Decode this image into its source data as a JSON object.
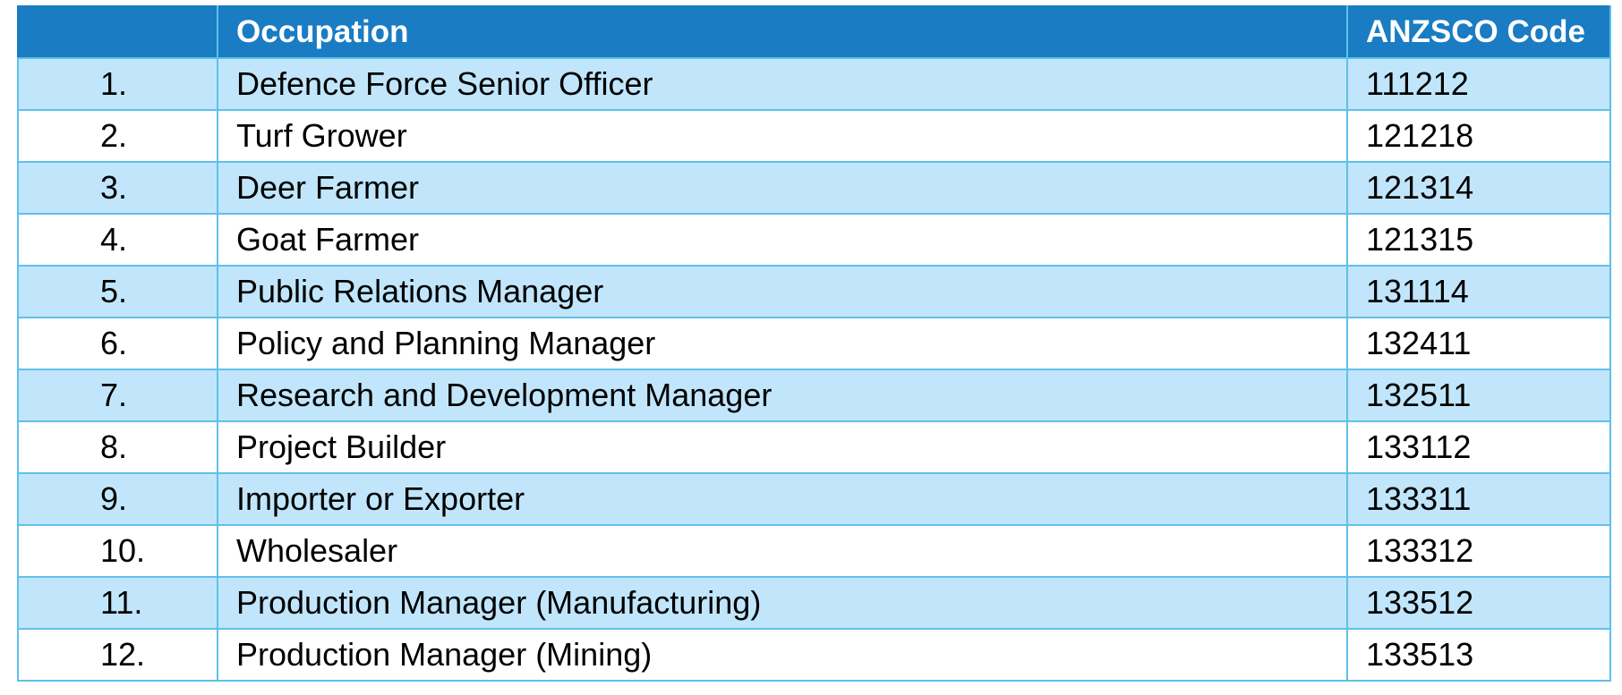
{
  "table": {
    "headers": {
      "number": "",
      "occupation": "Occupation",
      "code": "ANZSCO Code"
    },
    "rows": [
      {
        "number": "1.",
        "occupation": "Defence Force Senior Officer",
        "code": "111212"
      },
      {
        "number": "2.",
        "occupation": "Turf Grower",
        "code": "121218"
      },
      {
        "number": "3.",
        "occupation": "Deer Farmer",
        "code": "121314"
      },
      {
        "number": "4.",
        "occupation": "Goat Farmer",
        "code": "121315"
      },
      {
        "number": "5.",
        "occupation": "Public Relations Manager",
        "code": "131114"
      },
      {
        "number": "6.",
        "occupation": "Policy and Planning Manager",
        "code": "132411"
      },
      {
        "number": "7.",
        "occupation": "Research and Development Manager",
        "code": "132511"
      },
      {
        "number": "8.",
        "occupation": "Project Builder",
        "code": "133112"
      },
      {
        "number": "9.",
        "occupation": "Importer or Exporter",
        "code": "133311"
      },
      {
        "number": "10.",
        "occupation": "Wholesaler",
        "code": "133312"
      },
      {
        "number": "11.",
        "occupation": "Production Manager (Manufacturing)",
        "code": "133512"
      },
      {
        "number": "12.",
        "occupation": "Production Manager (Mining)",
        "code": "133513"
      }
    ]
  },
  "colors": {
    "header_background": "#1a7cc3",
    "header_text": "#ffffff",
    "band_row_background": "#c1e6fb",
    "plain_row_background": "#ffffff",
    "grid_line": "#5fc0ea"
  }
}
